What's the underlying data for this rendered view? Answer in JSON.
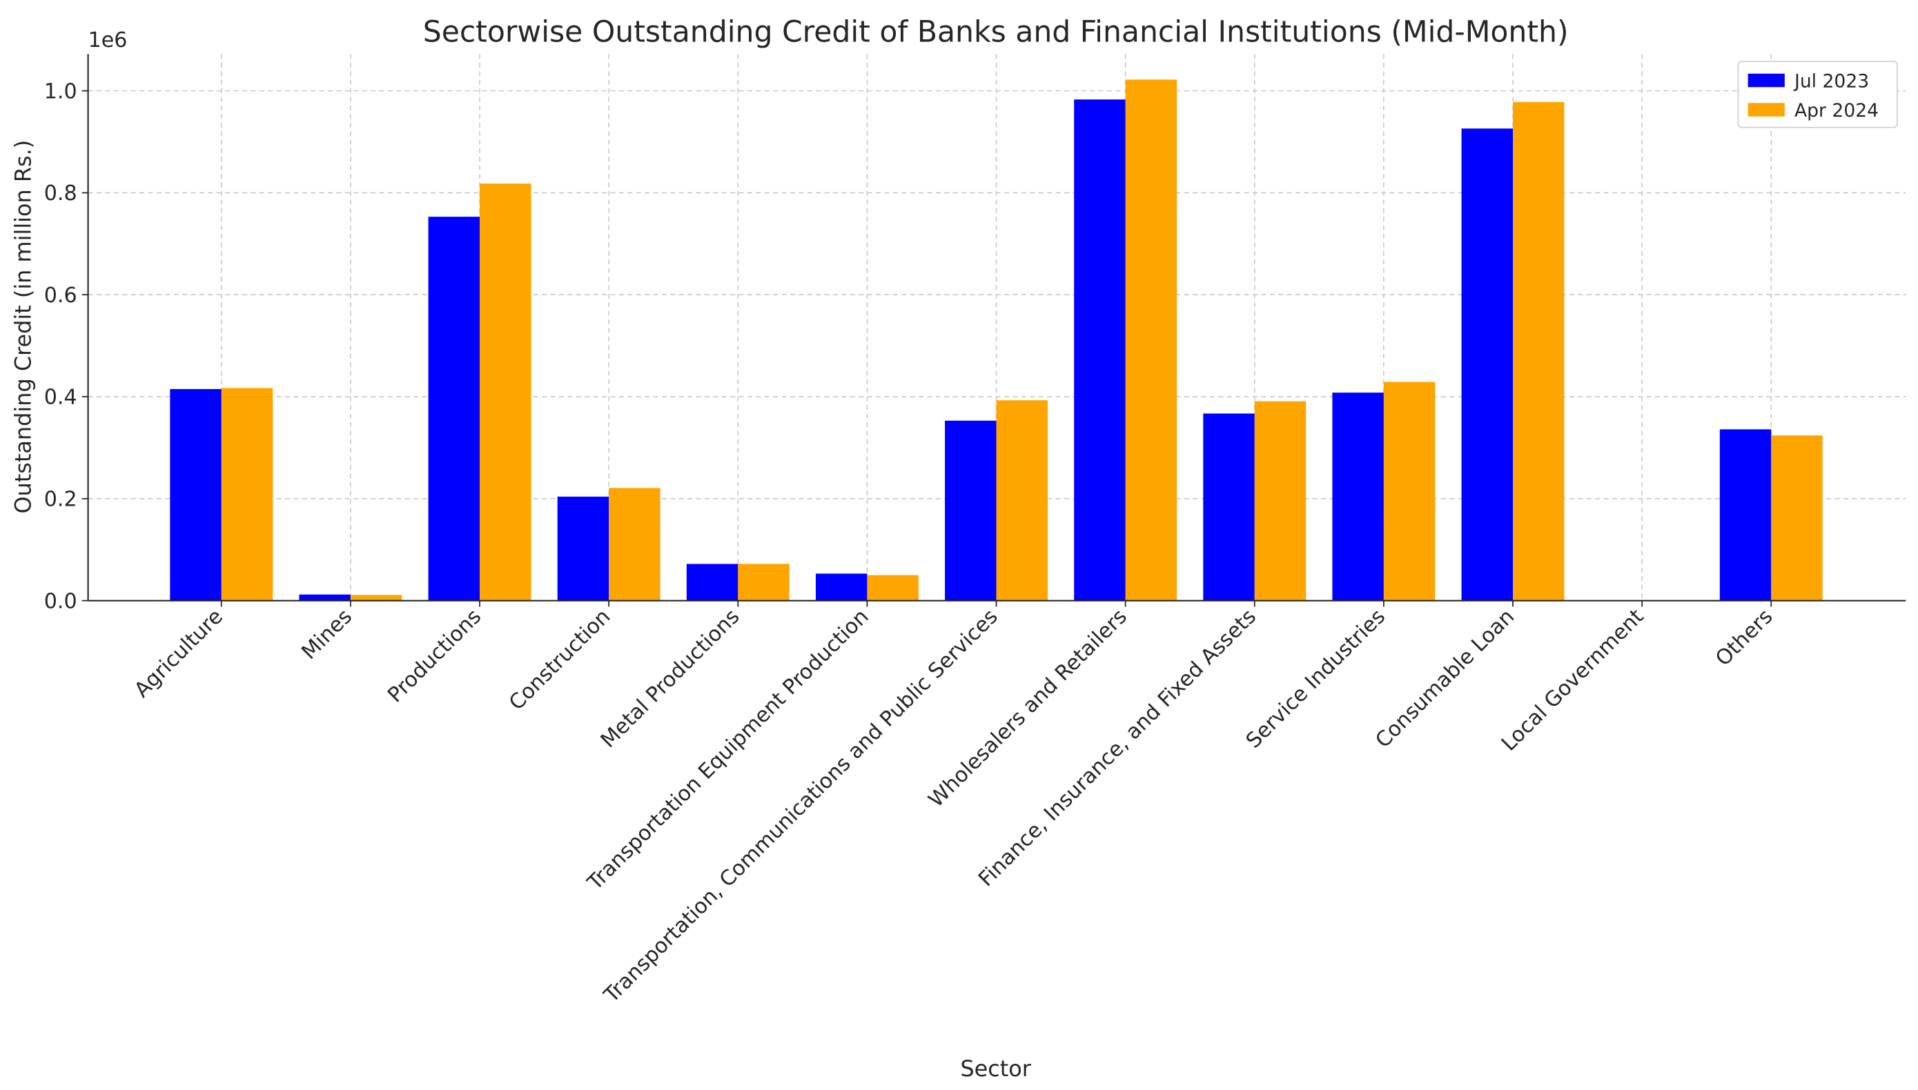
{
  "chart_data": {
    "type": "bar",
    "title": "Sectorwise Outstanding Credit of Banks and Financial Institutions (Mid-Month)",
    "x_label": "Sector",
    "y_label": "Outstanding Credit (in million Rs.)",
    "y_offset_label": "1e6",
    "categories": [
      "Agriculture",
      "Mines",
      "Productions",
      "Construction",
      "Metal Productions",
      "Transportation Equipment Production",
      "Transportation, Communications and Public Services",
      "Wholesalers and Retailers",
      "Finance, Insurance, and Fixed Assets",
      "Service Industries",
      "Consumable Loan",
      "Local Government",
      "Others"
    ],
    "series": [
      {
        "name": "Jul 2023",
        "color": "#0000ff",
        "values": [
          415000,
          12000,
          753000,
          204000,
          72000,
          53000,
          353000,
          983000,
          367000,
          408000,
          926000,
          0,
          336000
        ]
      },
      {
        "name": "Apr 2024",
        "color": "#ffa500",
        "values": [
          417000,
          11000,
          818000,
          221000,
          72000,
          50000,
          393000,
          1022000,
          391000,
          429000,
          978000,
          0,
          324000
        ]
      }
    ],
    "ylim": [
      0,
      1072000
    ],
    "yticks": [
      {
        "value": 0,
        "label": "0.0"
      },
      {
        "value": 200000,
        "label": "0.2"
      },
      {
        "value": 400000,
        "label": "0.4"
      },
      {
        "value": 600000,
        "label": "0.6"
      },
      {
        "value": 800000,
        "label": "0.8"
      },
      {
        "value": 1000000,
        "label": "1.0"
      }
    ],
    "grid": true,
    "legend": "upper right"
  }
}
